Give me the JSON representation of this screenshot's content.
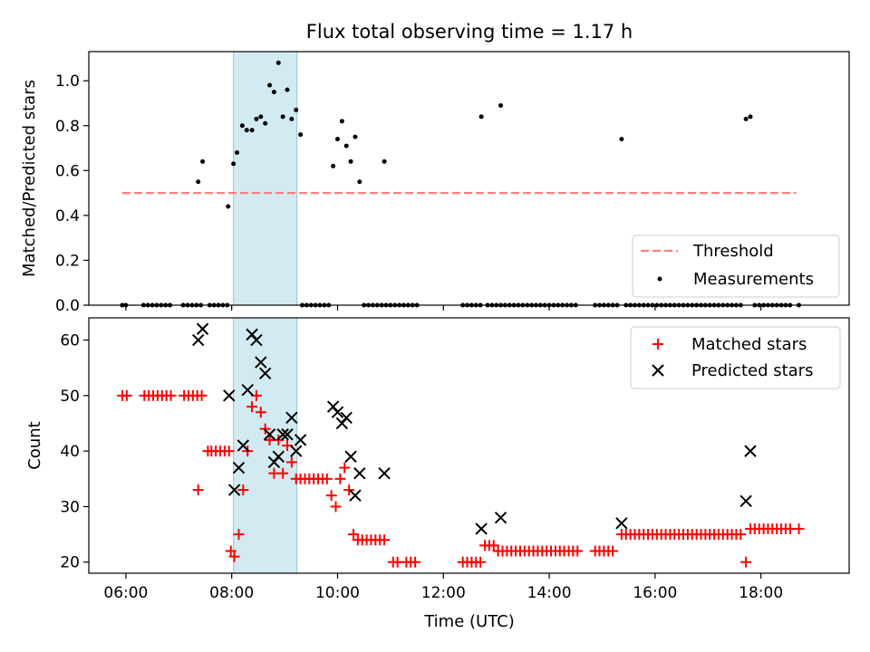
{
  "chart_data": [
    {
      "type": "scatter",
      "title": "Flux total observing time = 1.17 h",
      "ylabel": "Matched/Predicted stars",
      "xlabel": "",
      "xlim": [
        "05:18",
        "19:40"
      ],
      "ylim": [
        0,
        1.13
      ],
      "yticks": [
        0.0,
        0.2,
        0.4,
        0.6,
        0.8,
        1.0
      ],
      "grid": false,
      "legend_position": "bottom-right",
      "highlight_band": {
        "x": [
          "08:02",
          "09:14"
        ],
        "color": "#add8e6"
      },
      "series": [
        {
          "name": "Threshold",
          "style": "dashed-line",
          "color": "#ff7f7f",
          "x": [
            "05:56",
            "18:40"
          ],
          "y": [
            0.5,
            0.5
          ]
        },
        {
          "name": "Measurements",
          "style": "dot",
          "color": "#000000",
          "x": [
            "07:22",
            "07:27",
            "07:56",
            "08:02",
            "08:06",
            "08:12",
            "08:17",
            "08:23",
            "08:28",
            "08:33",
            "08:38",
            "08:43",
            "08:48",
            "08:53",
            "08:58",
            "09:03",
            "09:08",
            "09:13",
            "09:18",
            "09:55",
            "10:00",
            "10:05",
            "10:10",
            "10:15",
            "10:20",
            "10:25",
            "10:53",
            "12:43",
            "13:05",
            "15:22",
            "17:43",
            "17:48"
          ],
          "y": [
            0.55,
            0.64,
            0.44,
            0.63,
            0.68,
            0.8,
            0.78,
            0.78,
            0.83,
            0.84,
            0.81,
            0.98,
            0.95,
            1.08,
            0.84,
            0.96,
            0.83,
            0.87,
            0.76,
            0.62,
            0.74,
            0.82,
            0.71,
            0.64,
            0.75,
            0.55,
            0.64,
            0.84,
            0.89,
            0.74,
            0.83,
            0.84
          ]
        },
        {
          "style": "dot",
          "color": "#000000",
          "x": [
            "05:56",
            "06:00",
            "06:20",
            "06:25",
            "06:30",
            "06:35",
            "06:40",
            "06:45",
            "06:50",
            "07:05",
            "07:10",
            "07:15",
            "07:20",
            "07:25",
            "07:35",
            "07:40",
            "07:45",
            "07:50",
            "07:55",
            "09:20",
            "09:25",
            "09:30",
            "09:35",
            "09:40",
            "09:45",
            "09:50",
            "10:30",
            "10:35",
            "10:40",
            "10:45",
            "10:50",
            "10:55",
            "11:00",
            "11:05",
            "11:10",
            "11:15",
            "11:20",
            "11:25",
            "11:30",
            "12:22",
            "12:27",
            "12:32",
            "12:37",
            "12:42",
            "12:50",
            "12:55",
            "13:00",
            "13:05",
            "13:10",
            "13:15",
            "13:20",
            "13:25",
            "13:30",
            "13:35",
            "13:40",
            "13:45",
            "13:50",
            "13:55",
            "14:00",
            "14:05",
            "14:10",
            "14:15",
            "14:20",
            "14:25",
            "14:30",
            "14:52",
            "14:57",
            "15:02",
            "15:07",
            "15:12",
            "15:17",
            "15:27",
            "15:32",
            "15:37",
            "15:42",
            "15:47",
            "15:52",
            "15:57",
            "16:02",
            "16:07",
            "16:12",
            "16:17",
            "16:22",
            "16:27",
            "16:32",
            "16:37",
            "16:42",
            "16:47",
            "16:52",
            "16:57",
            "17:02",
            "17:07",
            "17:12",
            "17:17",
            "17:22",
            "17:27",
            "17:32",
            "17:37",
            "17:53",
            "17:58",
            "18:03",
            "18:08",
            "18:13",
            "18:18",
            "18:23",
            "18:28",
            "18:33",
            "18:43"
          ],
          "y": "all 0"
        }
      ]
    },
    {
      "type": "scatter",
      "title": "",
      "ylabel": "Count",
      "xlabel": "Time (UTC)",
      "xlim": [
        "05:18",
        "19:40"
      ],
      "ylim": [
        18,
        64
      ],
      "yticks": [
        20,
        30,
        40,
        50,
        60
      ],
      "xticks": [
        "06:00",
        "08:00",
        "10:00",
        "12:00",
        "14:00",
        "16:00",
        "18:00"
      ],
      "grid": false,
      "legend_position": "top-right",
      "highlight_band": {
        "x": [
          "08:02",
          "09:14"
        ],
        "color": "#add8e6"
      },
      "series": [
        {
          "name": "Matched stars",
          "marker": "+",
          "color": "#ff0000",
          "x": [
            "05:56",
            "06:01",
            "06:21",
            "06:26",
            "06:31",
            "06:36",
            "06:41",
            "06:46",
            "06:51",
            "07:06",
            "07:11",
            "07:16",
            "07:21",
            "07:26",
            "07:33",
            "07:37",
            "07:42",
            "07:47",
            "07:52",
            "07:57",
            "07:22",
            "07:59",
            "08:03",
            "08:08",
            "08:13",
            "08:18",
            "08:23",
            "08:28",
            "08:33",
            "08:38",
            "08:43",
            "08:48",
            "08:53",
            "08:58",
            "09:03",
            "09:08",
            "09:13",
            "09:18",
            "09:23",
            "09:28",
            "09:33",
            "09:38",
            "09:43",
            "09:48",
            "09:53",
            "09:58",
            "10:03",
            "10:08",
            "10:13",
            "10:18",
            "10:23",
            "10:28",
            "10:33",
            "10:38",
            "10:43",
            "10:48",
            "10:53",
            "11:03",
            "11:08",
            "11:18",
            "11:23",
            "11:28",
            "12:22",
            "12:27",
            "12:32",
            "12:37",
            "12:42",
            "12:47",
            "12:52",
            "12:57",
            "13:02",
            "13:07",
            "13:12",
            "13:17",
            "13:22",
            "13:27",
            "13:32",
            "13:37",
            "13:42",
            "13:47",
            "13:52",
            "13:57",
            "14:02",
            "14:07",
            "14:12",
            "14:17",
            "14:22",
            "14:27",
            "14:32",
            "14:52",
            "14:57",
            "15:02",
            "15:07",
            "15:12",
            "15:22",
            "15:27",
            "15:32",
            "15:37",
            "15:42",
            "15:47",
            "15:52",
            "15:57",
            "16:02",
            "16:07",
            "16:12",
            "16:17",
            "16:22",
            "16:27",
            "16:32",
            "16:37",
            "16:42",
            "16:47",
            "16:52",
            "16:57",
            "17:02",
            "17:07",
            "17:12",
            "17:17",
            "17:22",
            "17:27",
            "17:32",
            "17:37",
            "17:43",
            "17:48",
            "17:53",
            "17:58",
            "18:03",
            "18:08",
            "18:13",
            "18:18",
            "18:23",
            "18:28",
            "18:33",
            "18:43"
          ],
          "y": [
            50,
            50,
            50,
            50,
            50,
            50,
            50,
            50,
            50,
            50,
            50,
            50,
            50,
            50,
            40,
            40,
            40,
            40,
            40,
            40,
            33,
            22,
            21,
            25,
            33,
            40,
            48,
            50,
            47,
            44,
            42,
            36,
            42,
            36,
            41,
            38,
            35,
            35,
            35,
            35,
            35,
            35,
            35,
            35,
            32,
            30,
            35,
            37,
            33,
            25,
            24,
            24,
            24,
            24,
            24,
            24,
            24,
            20,
            20,
            20,
            20,
            20,
            20,
            20,
            20,
            20,
            20,
            23,
            23,
            23,
            22,
            22,
            22,
            22,
            22,
            22,
            22,
            22,
            22,
            22,
            22,
            22,
            22,
            22,
            22,
            22,
            22,
            22,
            22,
            22,
            22,
            22,
            22,
            22,
            25,
            25,
            25,
            25,
            25,
            25,
            25,
            25,
            25,
            25,
            25,
            25,
            25,
            25,
            25,
            25,
            25,
            25,
            25,
            25,
            25,
            25,
            25,
            25,
            25,
            25,
            25,
            25,
            20,
            26,
            26,
            26,
            26,
            26,
            26,
            26,
            26,
            26,
            26,
            26
          ]
        },
        {
          "name": "Predicted stars",
          "marker": "x",
          "color": "#000000",
          "x": [
            "07:22",
            "07:27",
            "07:57",
            "08:03",
            "08:08",
            "08:13",
            "08:18",
            "08:23",
            "08:28",
            "08:33",
            "08:38",
            "08:43",
            "08:48",
            "08:53",
            "08:58",
            "09:03",
            "09:08",
            "09:13",
            "09:18",
            "09:55",
            "10:00",
            "10:05",
            "10:10",
            "10:15",
            "10:20",
            "10:25",
            "10:53",
            "12:43",
            "13:05",
            "15:22",
            "17:43",
            "17:48"
          ],
          "y": [
            60,
            62,
            50,
            33,
            37,
            41,
            51,
            61,
            60,
            56,
            54,
            43,
            38,
            39,
            43,
            43,
            46,
            40,
            42,
            48,
            47,
            45,
            46,
            39,
            32,
            36,
            36,
            26,
            28,
            27,
            31,
            40
          ]
        }
      ]
    }
  ]
}
